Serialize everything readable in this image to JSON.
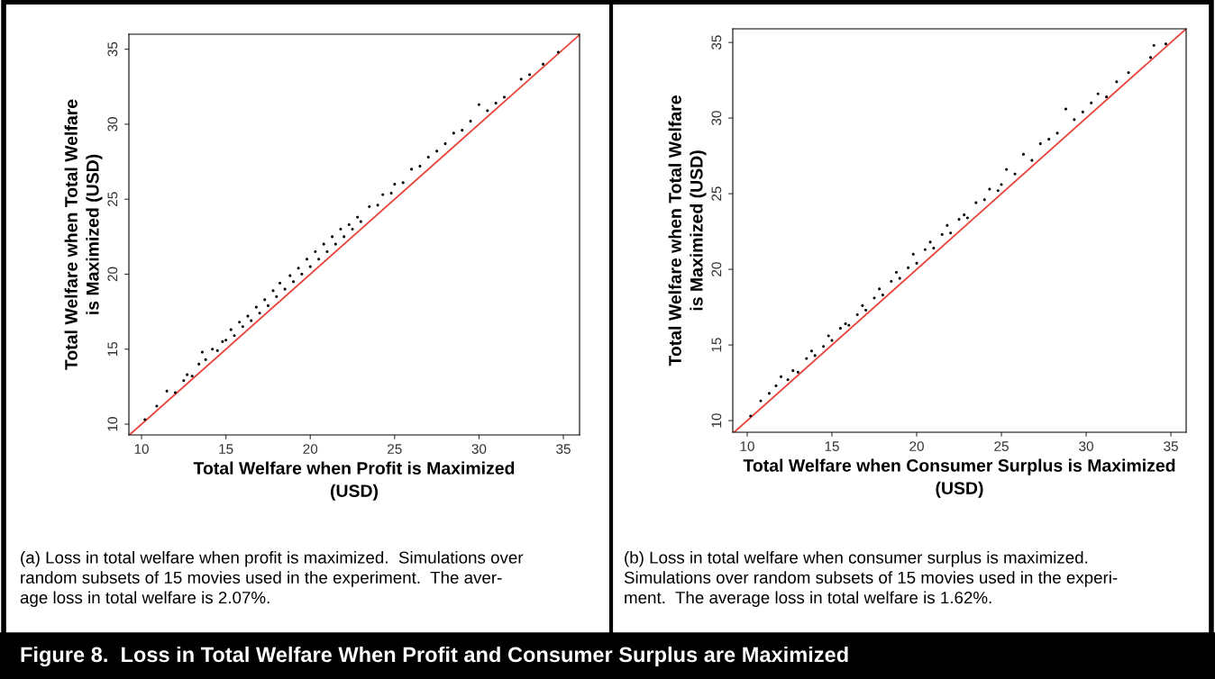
{
  "chart_data": [
    {
      "type": "scatter",
      "title": "Figure 8.  Loss in Total Welfare When Profit and Consumer Surplus are Maximized",
      "xlabel": "Total Welfare when Profit is Maximized\n(USD)",
      "ylabel": "Total Welfare when Total Welfare\nis Maximized (USD)",
      "annotations": [
        "(a) Loss in total welfare when profit is maximized.  Simulations over\nrandom subsets of 15 movies used in the experiment.  The aver-\nage loss in total welfare is 2.07%."
      ],
      "xlim": [
        9.25,
        35.96
      ],
      "ylim": [
        9.28,
        36.0
      ],
      "xticks": [
        10,
        15,
        20,
        25,
        30,
        35
      ],
      "yticks": [
        10,
        15,
        20,
        25,
        30,
        35
      ],
      "grid": false,
      "legend": false,
      "series": [
        {
          "marker": "circle",
          "color": "#000000",
          "x": [
            10.2,
            10.9,
            11.5,
            12.0,
            12.5,
            12.7,
            13.0,
            13.4,
            13.6,
            13.8,
            14.2,
            14.5,
            14.8,
            15.0,
            15.3,
            15.5,
            15.8,
            16.0,
            16.3,
            16.5,
            16.8,
            17.0,
            17.3,
            17.5,
            17.8,
            18.0,
            18.2,
            18.5,
            18.8,
            19.0,
            19.3,
            19.5,
            19.8,
            20.0,
            20.3,
            20.5,
            20.8,
            21.0,
            21.3,
            21.5,
            21.8,
            22.0,
            22.3,
            22.5,
            22.8,
            23.0,
            23.5,
            24.0,
            24.3,
            24.8,
            25.0,
            25.5,
            26.0,
            26.5,
            27.0,
            27.5,
            28.0,
            28.5,
            29.0,
            29.5,
            30.0,
            30.5,
            31.0,
            31.5,
            32.5,
            33.0,
            33.8,
            34.7
          ],
          "values": [
            10.3,
            11.2,
            12.2,
            12.1,
            12.9,
            13.3,
            13.2,
            14.0,
            14.8,
            14.3,
            15.0,
            14.9,
            15.5,
            15.6,
            16.3,
            15.9,
            16.8,
            16.5,
            17.2,
            16.9,
            17.8,
            17.4,
            18.3,
            17.9,
            18.9,
            18.5,
            19.4,
            19.0,
            19.9,
            19.5,
            20.4,
            20.0,
            21.0,
            20.5,
            21.5,
            21.0,
            22.0,
            21.5,
            22.5,
            22.0,
            23.0,
            22.5,
            23.3,
            23.0,
            23.8,
            23.5,
            24.5,
            24.6,
            25.3,
            25.4,
            26.0,
            26.1,
            27.0,
            27.2,
            27.8,
            28.2,
            28.7,
            29.4,
            29.6,
            30.2,
            31.3,
            30.9,
            31.4,
            31.8,
            33.0,
            33.3,
            34.0,
            34.8
          ]
        },
        {
          "type": "line",
          "marker": "none",
          "color": "#e8463c",
          "x": [
            9.28,
            35.96
          ],
          "values": [
            9.28,
            35.96
          ]
        }
      ]
    },
    {
      "type": "scatter",
      "xlabel": "Total Welfare when Consumer Surplus is Maximized\n(USD)",
      "ylabel": "Total Welfare when Total Welfare\nis Maximized (USD)",
      "annotations": [
        "(b) Loss in total welfare when consumer surplus is maximized.\nSimulations over random subsets of 15 movies used in the experi-\nment.  The average loss in total welfare is 1.62%."
      ],
      "xlim": [
        9.15,
        35.9
      ],
      "ylim": [
        9.23,
        35.9
      ],
      "xticks": [
        10,
        15,
        20,
        25,
        30,
        35
      ],
      "yticks": [
        10,
        15,
        20,
        25,
        30,
        35
      ],
      "grid": false,
      "legend": false,
      "series": [
        {
          "marker": "circle",
          "color": "#000000",
          "x": [
            10.2,
            10.8,
            11.3,
            11.7,
            12.0,
            12.4,
            12.7,
            13.0,
            13.5,
            13.8,
            14.0,
            14.5,
            14.8,
            15.0,
            15.5,
            15.8,
            16.0,
            16.5,
            16.8,
            17.0,
            17.5,
            17.8,
            18.0,
            18.5,
            18.8,
            19.0,
            19.5,
            19.8,
            20.0,
            20.5,
            20.8,
            21.0,
            21.5,
            21.8,
            22.0,
            22.5,
            22.8,
            23.0,
            23.5,
            24.0,
            24.3,
            24.8,
            25.0,
            25.3,
            25.8,
            26.3,
            26.8,
            27.3,
            27.8,
            28.3,
            28.8,
            29.3,
            29.8,
            30.3,
            30.7,
            31.2,
            31.8,
            32.5,
            33.8,
            34.0,
            34.7
          ],
          "values": [
            10.3,
            11.3,
            11.8,
            12.3,
            12.9,
            12.7,
            13.3,
            13.2,
            14.1,
            14.6,
            14.3,
            14.9,
            15.6,
            15.3,
            16.1,
            16.4,
            16.3,
            17.0,
            17.6,
            17.3,
            18.1,
            18.7,
            18.3,
            19.2,
            19.8,
            19.4,
            20.1,
            21.0,
            20.4,
            21.3,
            21.8,
            21.4,
            22.3,
            22.9,
            22.4,
            23.3,
            23.6,
            23.4,
            24.4,
            24.6,
            25.3,
            25.2,
            25.6,
            26.6,
            26.3,
            27.6,
            27.2,
            28.3,
            28.6,
            29.0,
            30.6,
            29.9,
            30.4,
            31.0,
            31.6,
            31.4,
            32.4,
            33.0,
            34.0,
            34.8,
            34.9
          ]
        },
        {
          "type": "line",
          "marker": "none",
          "color": "#e8463c",
          "x": [
            9.23,
            35.9
          ],
          "values": [
            9.23,
            35.9
          ]
        }
      ]
    }
  ]
}
